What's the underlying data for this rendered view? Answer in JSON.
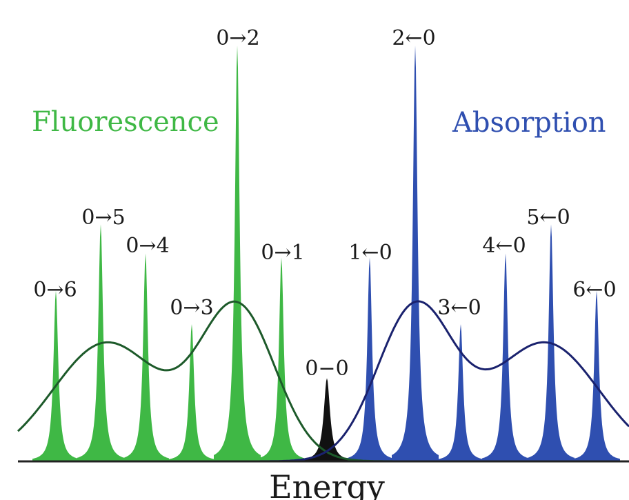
{
  "diagram": {
    "xlabel": "Energy",
    "colors": {
      "fluorescence": "#3fb845",
      "absorption": "#2f4fb0",
      "zero_zero": "#111111",
      "fluorescence_envelope": "#1d5a2a",
      "absorption_envelope": "#1a226e",
      "axis": "#222222"
    },
    "fluorescence": {
      "label": "Fluorescence",
      "peaks": [
        {
          "label": "0→6",
          "relative_height": 0.41
        },
        {
          "label": "0→5",
          "relative_height": 0.57
        },
        {
          "label": "0→4",
          "relative_height": 0.5
        },
        {
          "label": "0→3",
          "relative_height": 0.33
        },
        {
          "label": "0→2",
          "relative_height": 1.0
        },
        {
          "label": "0→1",
          "relative_height": 0.49
        }
      ]
    },
    "absorption": {
      "label": "Absorption",
      "peaks": [
        {
          "label": "1←0",
          "relative_height": 0.49
        },
        {
          "label": "2←0",
          "relative_height": 1.0
        },
        {
          "label": "3←0",
          "relative_height": 0.33
        },
        {
          "label": "4←0",
          "relative_height": 0.5
        },
        {
          "label": "5←0",
          "relative_height": 0.57
        },
        {
          "label": "6←0",
          "relative_height": 0.41
        }
      ]
    },
    "zero_zero": {
      "label": "0−0",
      "relative_height": 0.2
    }
  }
}
